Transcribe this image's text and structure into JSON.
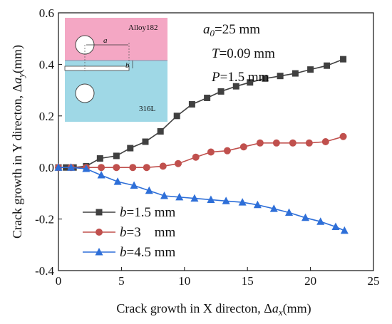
{
  "chart_data": {
    "type": "line",
    "xlabel_prefix": "Crack growth in X directon, Δ",
    "xlabel_var": "a",
    "xlabel_sub": "x",
    "xlabel_unit": "(mm)",
    "ylabel_prefix": "Crack growth in Y directon, Δ",
    "ylabel_var": "a",
    "ylabel_sub": "y",
    "ylabel_unit": "(mm)",
    "xlim": [
      0,
      25
    ],
    "ylim": [
      -0.4,
      0.6
    ],
    "xticks": [
      0,
      5,
      10,
      15,
      20,
      25
    ],
    "yticks": [
      -0.4,
      -0.2,
      0.0,
      0.2,
      0.4,
      0.6
    ],
    "xtick_labels": [
      "0",
      "5",
      "10",
      "15",
      "20",
      "25"
    ],
    "ytick_labels": [
      "-0.4",
      "-0.2",
      "0.0",
      "0.2",
      "0.4",
      "0.6"
    ],
    "grid": false,
    "legend_position": "bottom-left",
    "series": [
      {
        "name": "b=1.5 mm",
        "name_var": "b",
        "name_rest": "=1.5 mm",
        "color": "#404040",
        "marker": "square",
        "x": [
          0,
          0.6,
          1.2,
          2.2,
          3.3,
          4.6,
          5.7,
          6.9,
          8.1,
          9.4,
          10.6,
          11.8,
          12.9,
          14.1,
          15.2,
          16.4,
          17.6,
          18.8,
          20.0,
          21.3,
          22.6
        ],
        "y": [
          0,
          0,
          0,
          0.005,
          0.035,
          0.045,
          0.075,
          0.1,
          0.14,
          0.2,
          0.245,
          0.27,
          0.295,
          0.315,
          0.33,
          0.345,
          0.355,
          0.365,
          0.38,
          0.395,
          0.42
        ]
      },
      {
        "name": "b=3 mm",
        "name_var": "b",
        "name_rest": "=3    mm",
        "color": "#c0504d",
        "marker": "circle",
        "x": [
          0,
          1.0,
          2.2,
          3.4,
          4.6,
          5.9,
          7.0,
          8.3,
          9.5,
          10.9,
          12.1,
          13.4,
          14.7,
          16.0,
          17.3,
          18.6,
          19.9,
          21.2,
          22.6
        ],
        "y": [
          0,
          0,
          0,
          0,
          0,
          0,
          0,
          0.005,
          0.015,
          0.04,
          0.06,
          0.065,
          0.08,
          0.095,
          0.095,
          0.095,
          0.095,
          0.1,
          0.12
        ]
      },
      {
        "name": "b=4.5 mm",
        "name_var": "b",
        "name_rest": "=4.5 mm",
        "color": "#2e6fd8",
        "marker": "triangle",
        "x": [
          0,
          1.0,
          2.2,
          3.4,
          4.7,
          6.0,
          7.2,
          8.4,
          9.6,
          10.8,
          12.1,
          13.3,
          14.6,
          15.8,
          17.1,
          18.3,
          19.6,
          20.8,
          22.0,
          22.7
        ],
        "y": [
          0,
          0,
          -0.005,
          -0.03,
          -0.055,
          -0.07,
          -0.09,
          -0.11,
          -0.115,
          -0.12,
          -0.125,
          -0.13,
          -0.135,
          -0.145,
          -0.16,
          -0.175,
          -0.195,
          -0.21,
          -0.23,
          -0.245
        ]
      }
    ],
    "annotations": {
      "a0_var": "a",
      "a0_sub": "0",
      "a0_rest": "=25 mm",
      "T_var": "T",
      "T_rest": "=0.09 mm",
      "P_var": "P",
      "P_rest": "=1.5 mm"
    }
  },
  "inset": {
    "top_label": "Alloy182",
    "bottom_label": "316L",
    "a_label": "a",
    "b_label": "b",
    "top_color": "#f4a7c4",
    "bottom_color": "#9fd8e6"
  }
}
